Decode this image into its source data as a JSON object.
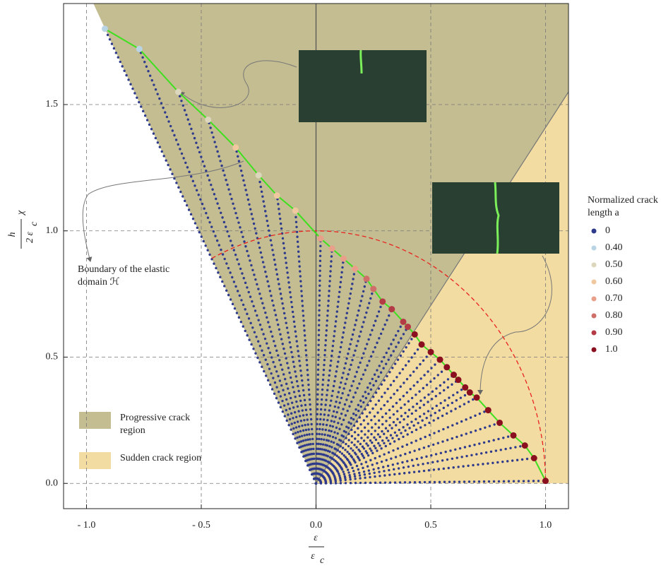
{
  "chart_data": {
    "type": "scatter",
    "xlim": [
      -1.1,
      1.1
    ],
    "ylim": [
      -0.1,
      1.9
    ],
    "xticks": [
      {
        "value": -1.0,
        "label": "- 1.0"
      },
      {
        "value": -0.5,
        "label": "- 0.5"
      },
      {
        "value": 0,
        "label": "0.0"
      },
      0.5,
      {
        "value": 1.0,
        "label": "1.0"
      }
    ],
    "yticks": [
      {
        "value": 0,
        "label": "0.0"
      },
      0.5,
      {
        "value": 1.0,
        "label": "1.0"
      },
      1.5
    ],
    "grid": true,
    "xlabel": {
      "numerator": "ε",
      "denominator": "ε",
      "denominator_sub": "c"
    },
    "ylabel": {
      "numerator": "h",
      "denominator": "2 ε",
      "denominator_sub": "c",
      "factor": "χ"
    },
    "regions": [
      {
        "name": "Progressive crack region",
        "color": "#c4bd92",
        "x": [
          0,
          -0.97,
          1.1,
          1.1
        ],
        "y": [
          0,
          1.9,
          1.9,
          1.55
        ]
      },
      {
        "name": "Sudden crack region",
        "color": "#f2dca2",
        "x": [
          0,
          1.1,
          1.1
        ],
        "y": [
          0,
          1.55,
          0
        ]
      }
    ],
    "arc": {
      "radius": 1,
      "start_angle": 117,
      "end_angle": 0,
      "color": "#e8231e"
    },
    "boundary": {
      "color": "#3ee01e",
      "ray_color": "#2e3a8c",
      "x": [
        -0.92,
        -0.77,
        -0.6,
        -0.47,
        -0.35,
        -0.25,
        -0.17,
        -0.09,
        0.02,
        0.07,
        0.12,
        0.17,
        0.22,
        0.25,
        0.29,
        0.33,
        0.38,
        0.4,
        0.43,
        0.46,
        0.5,
        0.54,
        0.57,
        0.6,
        0.62,
        0.65,
        0.67,
        0.7,
        0.75,
        0.8,
        0.86,
        0.91,
        0.95,
        1.0
      ],
      "y": [
        1.8,
        1.72,
        1.55,
        1.44,
        1.33,
        1.22,
        1.14,
        1.08,
        0.97,
        0.93,
        0.89,
        0.85,
        0.81,
        0.77,
        0.72,
        0.69,
        0.64,
        0.62,
        0.59,
        0.55,
        0.52,
        0.49,
        0.46,
        0.43,
        0.41,
        0.38,
        0.36,
        0.34,
        0.29,
        0.24,
        0.19,
        0.15,
        0.1,
        0.01
      ],
      "crack_length": [
        0.4,
        0.45,
        0.5,
        0.5,
        0.55,
        0.5,
        0.6,
        0.6,
        0.7,
        0.7,
        0.7,
        0.7,
        0.8,
        0.8,
        0.9,
        0.9,
        0.9,
        0.9,
        1.0,
        1.0,
        1.0,
        1.0,
        1.0,
        1.0,
        1.0,
        1.0,
        1.0,
        1.0,
        1.0,
        1.0,
        1.0,
        1.0,
        1.0,
        1.0
      ]
    },
    "legend_title": "Normalized crack length a",
    "legend": [
      {
        "label": "0",
        "level": 0,
        "color": "#2e3a8c"
      },
      {
        "label": "0.40",
        "level": 0.4,
        "color": "#b9d4e4"
      },
      {
        "label": "0.50",
        "level": 0.5,
        "color": "#dcd6bc"
      },
      {
        "label": "0.60",
        "level": 0.6,
        "color": "#f0c8a0"
      },
      {
        "label": "0.70",
        "level": 0.7,
        "color": "#e8a08a"
      },
      {
        "label": "0.80",
        "level": 0.8,
        "color": "#cf6f6a"
      },
      {
        "label": "0.90",
        "level": 0.9,
        "color": "#b43a46"
      },
      {
        "label": "1.0",
        "level": 1.0,
        "color": "#8a1020"
      }
    ],
    "annotation": "Boundary of the elastic domain ℋ"
  }
}
